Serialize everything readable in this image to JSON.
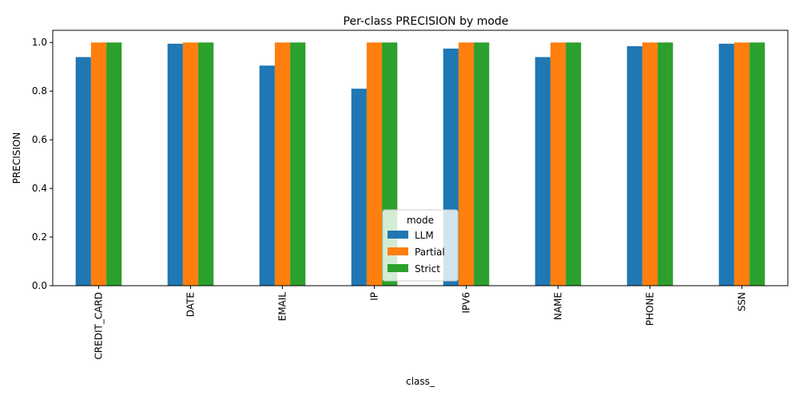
{
  "chart_data": {
    "type": "bar",
    "title": "Per-class PRECISION by mode",
    "xlabel": "class_",
    "ylabel": "PRECISION",
    "categories": [
      "CREDIT_CARD",
      "DATE",
      "EMAIL",
      "IP",
      "IPV6",
      "NAME",
      "PHONE",
      "SSN"
    ],
    "series": [
      {
        "name": "LLM",
        "color": "#1f77b4",
        "values": [
          0.94,
          0.995,
          0.905,
          0.81,
          0.975,
          0.94,
          0.985,
          0.995
        ]
      },
      {
        "name": "Partial",
        "color": "#ff7f0e",
        "values": [
          1.0,
          1.0,
          1.0,
          1.0,
          1.0,
          1.0,
          1.0,
          1.0
        ]
      },
      {
        "name": "Strict",
        "color": "#2ca02c",
        "values": [
          1.0,
          1.0,
          1.0,
          1.0,
          1.0,
          1.0,
          1.0,
          1.0
        ]
      }
    ],
    "ylim": [
      0,
      1.05
    ],
    "yticks": [
      0.0,
      0.2,
      0.4,
      0.6,
      0.8,
      1.0
    ],
    "ytick_labels": [
      "0.0",
      "0.2",
      "0.4",
      "0.6",
      "0.8",
      "1.0"
    ],
    "grid": false,
    "legend": {
      "title": "mode",
      "placement": "lower-center"
    }
  }
}
